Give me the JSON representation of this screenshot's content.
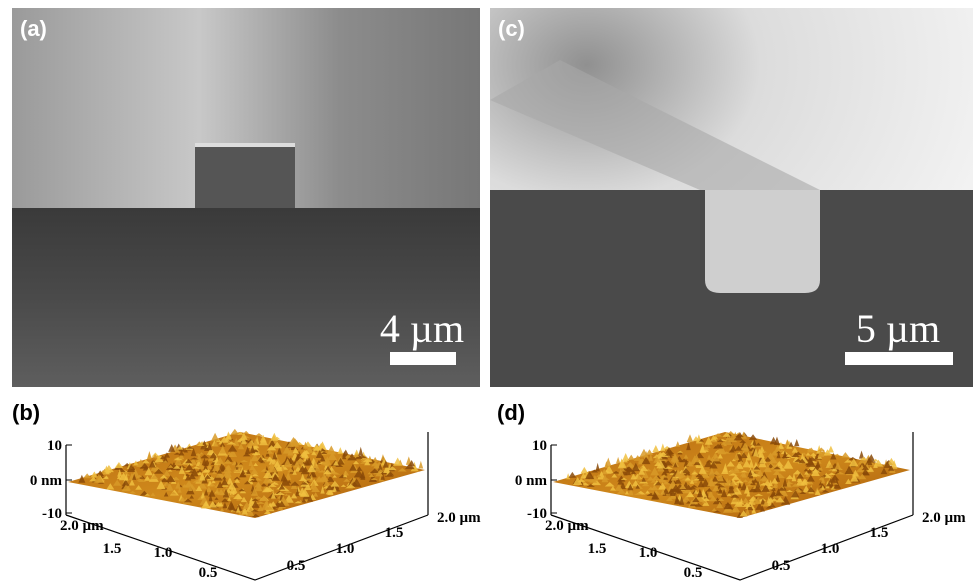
{
  "panels": [
    {
      "label": "(a)",
      "scale_bar": "4 µm"
    },
    {
      "label": "(b)",
      "z_ticks": [
        "10",
        "0 nm",
        "-10"
      ],
      "left_axis_ticks": [
        "2.0 µm",
        "1.5",
        "1.0",
        "0.5"
      ],
      "right_axis_ticks": [
        "0.5",
        "1.0",
        "1.5",
        "2.0 µm"
      ]
    },
    {
      "label": "(c)",
      "scale_bar": "5 µm"
    },
    {
      "label": "(d)",
      "z_ticks": [
        "10",
        "0 nm",
        "-10"
      ],
      "left_axis_ticks": [
        "2.0 µm",
        "1.5",
        "1.0",
        "0.5"
      ],
      "right_axis_ticks": [
        "0.5",
        "1.0",
        "1.5",
        "2.0 µm"
      ]
    }
  ]
}
